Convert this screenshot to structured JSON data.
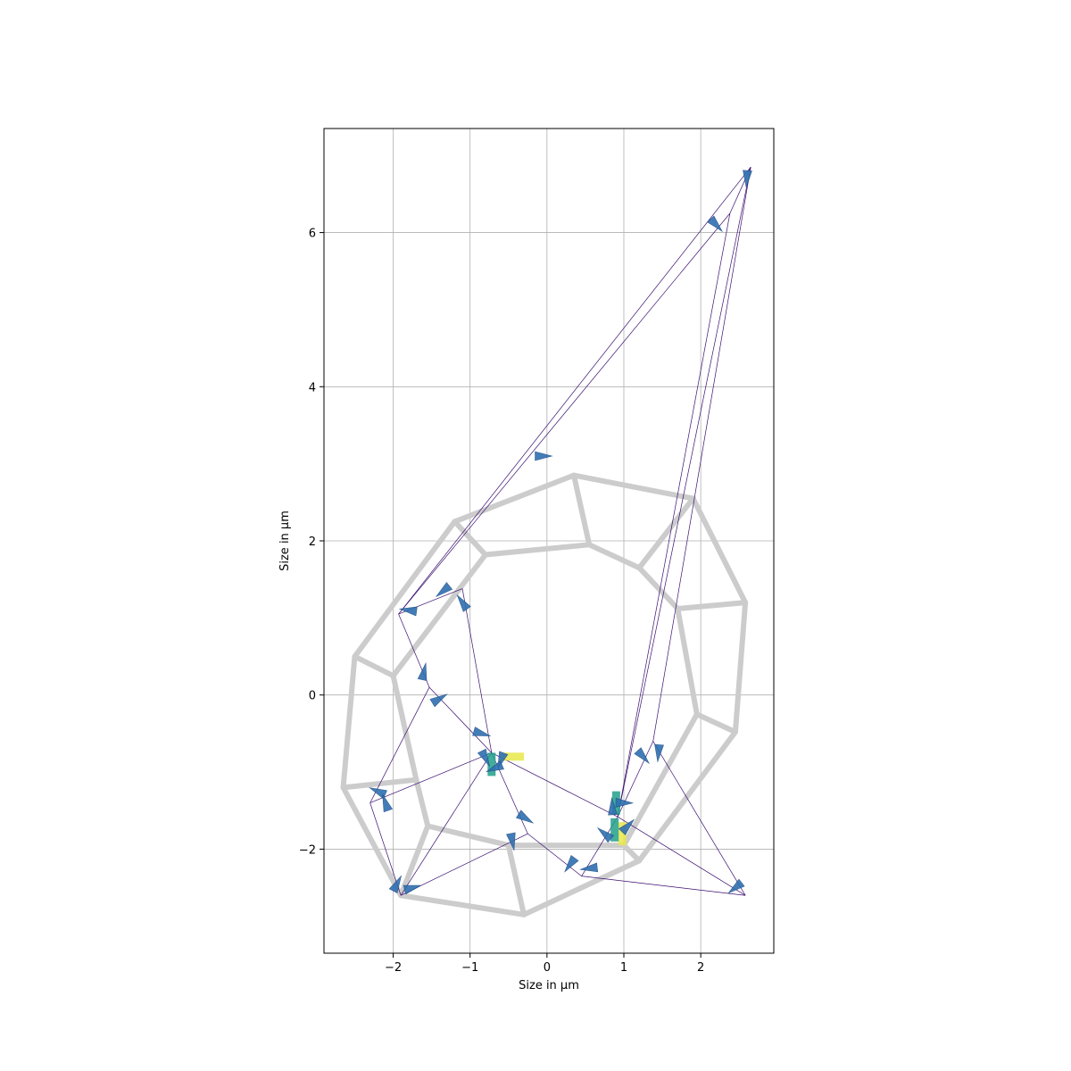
{
  "chart_data": {
    "type": "scatter",
    "title": "",
    "xlabel": "Size in µm",
    "ylabel": "Size in µm",
    "xlim": [
      -2.9,
      2.95
    ],
    "ylim": [
      -3.35,
      7.35
    ],
    "xticks": [
      -2,
      -1,
      0,
      1,
      2
    ],
    "yticks": [
      -2,
      0,
      2,
      4,
      6
    ],
    "xtick_labels": [
      "−2",
      "−1",
      "0",
      "1",
      "2"
    ],
    "ytick_labels": [
      "−2",
      "0",
      "2",
      "4",
      "6"
    ],
    "grid": true,
    "colors": {
      "cell_edges": "#cccccc",
      "links": "#3b0f70",
      "arrows": "#2f6fb0",
      "yellow": "#e8e84a",
      "teal": "#21a08a",
      "grid": "#b0b0b0"
    },
    "cell_edges": [
      [
        [
          -2.5,
          0.5
        ],
        [
          -2.65,
          -1.2
        ]
      ],
      [
        [
          -2.65,
          -1.2
        ],
        [
          -1.9,
          -2.6
        ]
      ],
      [
        [
          -1.9,
          -2.6
        ],
        [
          -0.3,
          -2.85
        ]
      ],
      [
        [
          -0.3,
          -2.85
        ],
        [
          1.2,
          -2.15
        ]
      ],
      [
        [
          1.2,
          -2.15
        ],
        [
          2.45,
          -0.48
        ]
      ],
      [
        [
          2.45,
          -0.48
        ],
        [
          2.58,
          1.2
        ]
      ],
      [
        [
          2.58,
          1.2
        ],
        [
          1.9,
          2.55
        ]
      ],
      [
        [
          1.9,
          2.55
        ],
        [
          0.35,
          2.85
        ]
      ],
      [
        [
          0.35,
          2.85
        ],
        [
          -1.2,
          2.25
        ]
      ],
      [
        [
          -1.2,
          2.25
        ],
        [
          -2.5,
          0.5
        ]
      ],
      [
        [
          -1.2,
          2.25
        ],
        [
          -0.8,
          1.82
        ]
      ],
      [
        [
          0.35,
          2.85
        ],
        [
          0.55,
          1.95
        ]
      ],
      [
        [
          1.9,
          2.55
        ],
        [
          1.2,
          1.65
        ]
      ],
      [
        [
          2.58,
          1.2
        ],
        [
          1.7,
          1.12
        ]
      ],
      [
        [
          2.45,
          -0.48
        ],
        [
          1.95,
          -0.25
        ]
      ],
      [
        [
          1.2,
          -2.15
        ],
        [
          1.0,
          -1.95
        ]
      ],
      [
        [
          -0.3,
          -2.85
        ],
        [
          -0.5,
          -1.95
        ]
      ],
      [
        [
          -1.9,
          -2.6
        ],
        [
          -1.55,
          -1.7
        ]
      ],
      [
        [
          -2.65,
          -1.2
        ],
        [
          -1.7,
          -1.1
        ]
      ],
      [
        [
          -2.5,
          0.5
        ],
        [
          -2.0,
          0.25
        ]
      ],
      [
        [
          -0.8,
          1.82
        ],
        [
          0.55,
          1.95
        ]
      ],
      [
        [
          0.55,
          1.95
        ],
        [
          1.2,
          1.65
        ]
      ],
      [
        [
          1.2,
          1.65
        ],
        [
          1.7,
          1.12
        ]
      ],
      [
        [
          1.7,
          1.12
        ],
        [
          1.95,
          -0.25
        ]
      ],
      [
        [
          1.95,
          -0.25
        ],
        [
          1.0,
          -1.95
        ]
      ],
      [
        [
          1.0,
          -1.95
        ],
        [
          -0.5,
          -1.95
        ]
      ],
      [
        [
          -0.5,
          -1.95
        ],
        [
          -1.55,
          -1.7
        ]
      ],
      [
        [
          -1.55,
          -1.7
        ],
        [
          -1.7,
          -1.1
        ]
      ],
      [
        [
          -1.7,
          -1.1
        ],
        [
          -2.0,
          0.25
        ]
      ],
      [
        [
          -2.0,
          0.25
        ],
        [
          -0.8,
          1.82
        ]
      ]
    ],
    "links": [
      [
        [
          -0.72,
          -0.75
        ],
        [
          0.92,
          -1.58
        ]
      ],
      [
        [
          -0.72,
          -0.75
        ],
        [
          -1.53,
          0.1
        ]
      ],
      [
        [
          -0.72,
          -0.75
        ],
        [
          -2.3,
          -1.4
        ]
      ],
      [
        [
          -0.72,
          -0.75
        ],
        [
          -1.9,
          -2.6
        ]
      ],
      [
        [
          -0.72,
          -0.75
        ],
        [
          -0.25,
          -1.8
        ]
      ],
      [
        [
          -0.72,
          -0.75
        ],
        [
          -1.1,
          1.38
        ]
      ],
      [
        [
          -1.53,
          0.1
        ],
        [
          -1.93,
          1.05
        ]
      ],
      [
        [
          -1.53,
          0.1
        ],
        [
          -2.3,
          -1.4
        ]
      ],
      [
        [
          -1.93,
          1.05
        ],
        [
          -1.1,
          1.38
        ]
      ],
      [
        [
          -1.93,
          1.05
        ],
        [
          2.38,
          6.25
        ]
      ],
      [
        [
          -1.93,
          1.05
        ],
        [
          2.65,
          6.85
        ]
      ],
      [
        [
          -2.3,
          -1.4
        ],
        [
          -1.9,
          -2.6
        ]
      ],
      [
        [
          -1.9,
          -2.6
        ],
        [
          -0.25,
          -1.8
        ]
      ],
      [
        [
          -0.25,
          -1.8
        ],
        [
          0.45,
          -2.35
        ]
      ],
      [
        [
          0.45,
          -2.35
        ],
        [
          0.92,
          -1.58
        ]
      ],
      [
        [
          0.45,
          -2.35
        ],
        [
          2.58,
          -2.6
        ]
      ],
      [
        [
          0.92,
          -1.58
        ],
        [
          2.58,
          -2.6
        ]
      ],
      [
        [
          0.92,
          -1.58
        ],
        [
          2.65,
          6.85
        ]
      ],
      [
        [
          0.92,
          -1.58
        ],
        [
          2.38,
          6.25
        ]
      ],
      [
        [
          0.92,
          -1.58
        ],
        [
          1.38,
          -0.6
        ]
      ],
      [
        [
          1.38,
          -0.6
        ],
        [
          2.65,
          6.85
        ]
      ],
      [
        [
          1.38,
          -0.6
        ],
        [
          2.58,
          -2.6
        ]
      ],
      [
        [
          2.38,
          6.25
        ],
        [
          2.65,
          6.85
        ]
      ]
    ],
    "arrows": [
      [
        -0.05,
        3.1
      ],
      [
        2.2,
        6.1
      ],
      [
        2.6,
        6.7
      ],
      [
        -1.35,
        1.35
      ],
      [
        -1.8,
        1.1
      ],
      [
        -1.1,
        1.2
      ],
      [
        -1.6,
        0.3
      ],
      [
        -1.4,
        -0.05
      ],
      [
        -0.85,
        -0.5
      ],
      [
        -0.8,
        -0.82
      ],
      [
        -0.6,
        -0.85
      ],
      [
        -0.68,
        -0.95
      ],
      [
        -2.2,
        -1.25
      ],
      [
        -2.1,
        -1.4
      ],
      [
        -1.95,
        -2.45
      ],
      [
        -1.75,
        -2.5
      ],
      [
        -0.28,
        -1.6
      ],
      [
        -0.45,
        -1.9
      ],
      [
        0.3,
        -2.2
      ],
      [
        0.55,
        -2.25
      ],
      [
        0.75,
        -1.8
      ],
      [
        0.85,
        -1.45
      ],
      [
        1.05,
        -1.7
      ],
      [
        1.0,
        -1.4
      ],
      [
        1.25,
        -0.8
      ],
      [
        1.45,
        -0.75
      ],
      [
        2.45,
        -2.5
      ]
    ],
    "highlight_bars": [
      {
        "x": -0.45,
        "y": -0.8,
        "color": "yellow",
        "orient": "h"
      },
      {
        "x": -0.72,
        "y": -0.9,
        "color": "teal",
        "orient": "v"
      },
      {
        "x": 0.9,
        "y": -1.4,
        "color": "teal",
        "orient": "v"
      },
      {
        "x": 0.98,
        "y": -1.8,
        "color": "yellow",
        "orient": "v"
      },
      {
        "x": 0.88,
        "y": -1.75,
        "color": "teal",
        "orient": "v"
      }
    ]
  }
}
